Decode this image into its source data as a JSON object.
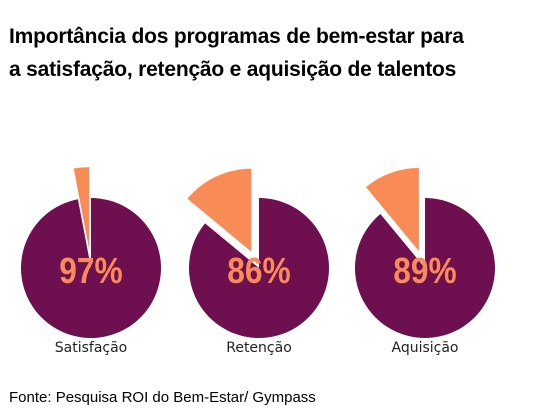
{
  "title_lines": [
    "Importância dos  programas de  bem-estar para",
    "a satisfação, retenção e aquisição de talentos"
  ],
  "source": "Fonte: Pesquisa ROI do Bem-Estar/ Gympass",
  "colors": {
    "main": "#6E0F4F",
    "accent": "#F98B56",
    "label": "#F98B56",
    "background": "#FFFFFF"
  },
  "chart_data": {
    "type": "pie",
    "title": "Importância dos  programas de  bem-estar para a satisfação, retenção e aquisição de talentos",
    "categories": [
      "Satisfação",
      "Retenção",
      "Aquisição"
    ],
    "values": [
      97,
      86,
      89
    ],
    "value_labels": [
      "97%",
      "86%",
      "89%"
    ],
    "unit": "%"
  }
}
